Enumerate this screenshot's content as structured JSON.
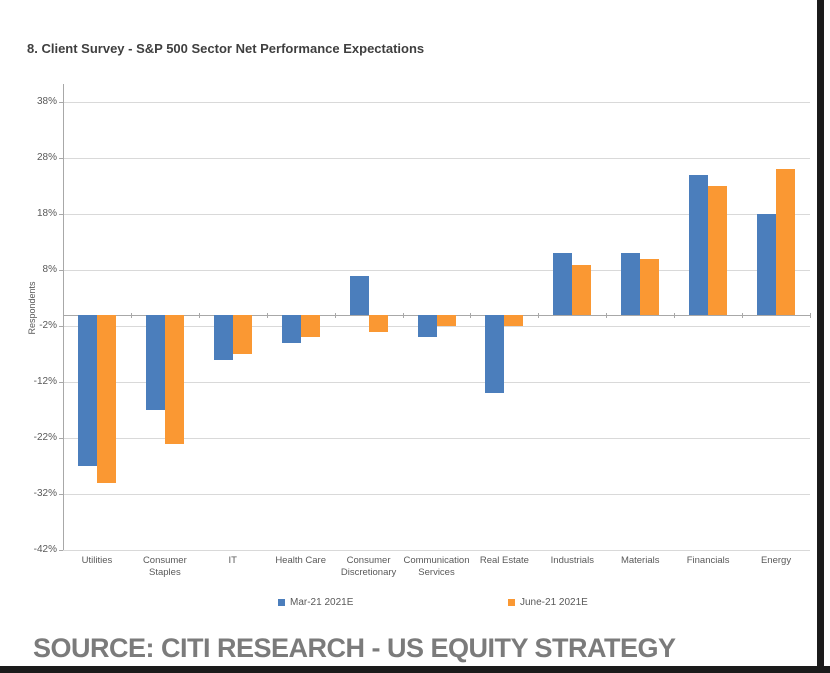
{
  "page": {
    "title": "8. Client Survey - S&P 500 Sector Net Performance Expectations",
    "source_line": "SOURCE: CITI RESEARCH - US EQUITY STRATEGY"
  },
  "colors": {
    "series1_blue": "#4B7EBC",
    "series2_orange": "#FA9833",
    "gridline": "#D9D9D9",
    "axis": "#A8A8A8",
    "tick_text": "#595959",
    "title_text": "#3F3F3F",
    "source_text": "#7B7B7B",
    "frame": "#1B1B1B"
  },
  "chart_data": {
    "type": "bar",
    "title": "8. Client Survey - S&P 500 Sector Net Performance Expectations",
    "xlabel": "",
    "ylabel": "Respondents",
    "ylim": [
      -42,
      38
    ],
    "yticks": [
      38,
      28,
      18,
      8,
      -2,
      -12,
      -22,
      -32,
      -42
    ],
    "ytick_suffix": "%",
    "grid": true,
    "legend_position": "bottom",
    "categories": [
      "Utilities",
      "Consumer Staples",
      "IT",
      "Health Care",
      "Consumer Discretionary",
      "Communication Services",
      "Real Estate",
      "Industrials",
      "Materials",
      "Financials",
      "Energy"
    ],
    "series": [
      {
        "name": "Mar-21 2021E",
        "color": "#4B7EBC",
        "values": [
          -27,
          -17,
          -8,
          -5,
          7,
          -4,
          -14,
          11,
          11,
          25,
          18
        ]
      },
      {
        "name": "June-21 2021E",
        "color": "#FA9833",
        "values": [
          -30,
          -23,
          -7,
          -4,
          -3,
          -2,
          -2,
          9,
          10,
          23,
          26
        ]
      }
    ]
  }
}
